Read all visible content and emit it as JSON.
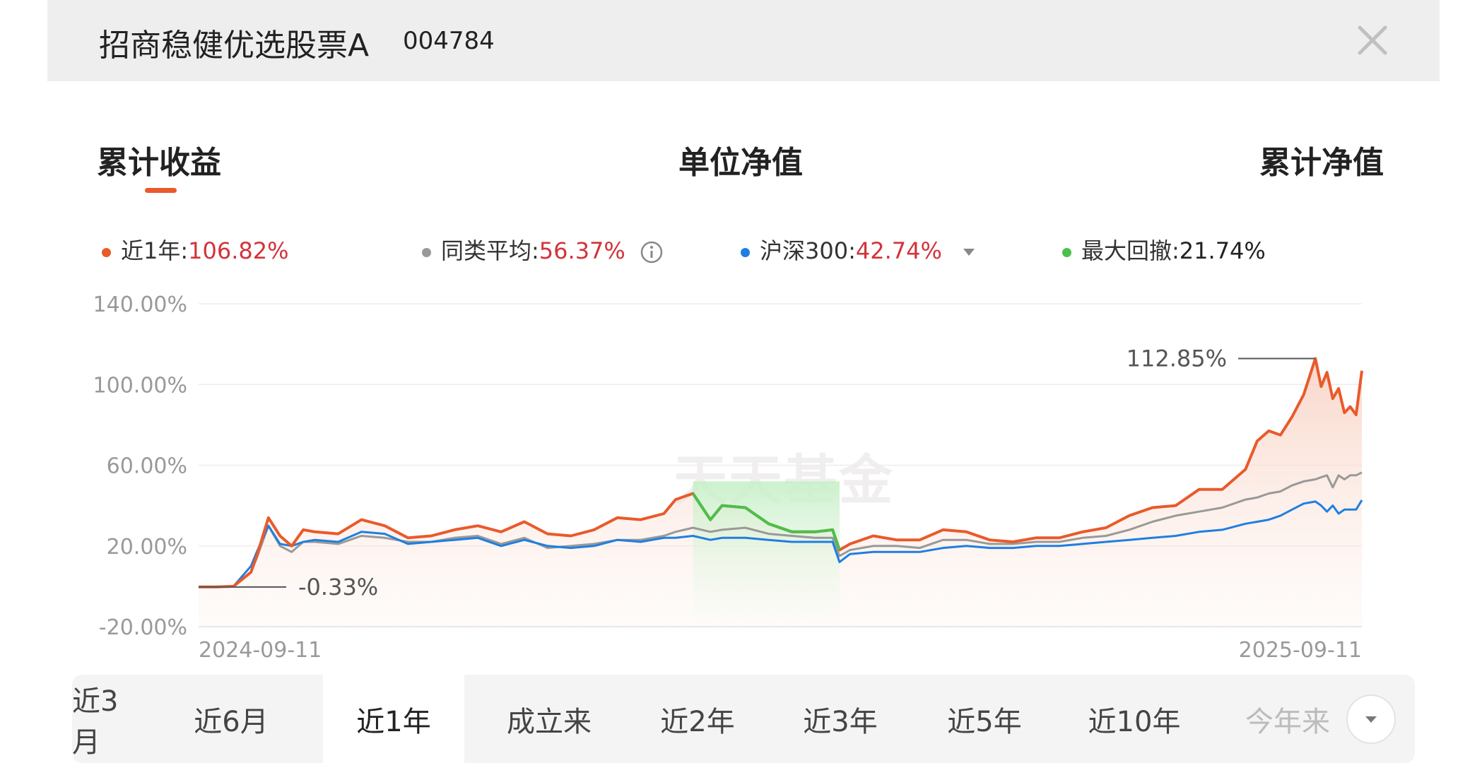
{
  "header": {
    "fund_name": "招商稳健优选股票A",
    "fund_code": "004784",
    "close_icon": "close-icon"
  },
  "mode_tabs": [
    {
      "label": "累计收益",
      "active": true
    },
    {
      "label": "单位净值",
      "active": false
    },
    {
      "label": "累计净值",
      "active": false
    }
  ],
  "legend": {
    "fund": {
      "label": "近1年:",
      "value": "106.82%",
      "color": "#e95a2b"
    },
    "peer": {
      "label": "同类平均:",
      "value": "56.37%",
      "color": "#999999"
    },
    "benchmark": {
      "label": "沪深300:",
      "value": "42.74%",
      "color": "#1e7fe0"
    },
    "drawdown": {
      "label": "最大回撤:",
      "value": "21.74%",
      "color": "#4cbf4c"
    }
  },
  "watermark": "天天基金",
  "chart_data": {
    "type": "line",
    "title": "",
    "xlabel": "",
    "ylabel": "",
    "x_start": "2024-09-11",
    "x_end": "2025-09-11",
    "x_tick_labels": [
      "2024-09-11",
      "2025-09-11"
    ],
    "y_tick_labels": [
      "140.00%",
      "100.00%",
      "60.00%",
      "20.00%",
      "-20.00%"
    ],
    "ylim": [
      -20,
      140
    ],
    "grid": true,
    "annotations": [
      {
        "text": "112.85%",
        "x_frac": 0.96,
        "y": 112.85
      },
      {
        "text": "-0.33%",
        "x_frac": 0.02,
        "y": -0.33
      }
    ],
    "drawdown_window": {
      "start_frac": 0.425,
      "end_frac": 0.551
    },
    "x_frac": [
      0,
      0.015,
      0.03,
      0.045,
      0.05,
      0.06,
      0.07,
      0.08,
      0.09,
      0.1,
      0.12,
      0.14,
      0.16,
      0.18,
      0.2,
      0.22,
      0.24,
      0.26,
      0.28,
      0.3,
      0.32,
      0.34,
      0.36,
      0.38,
      0.4,
      0.41,
      0.425,
      0.44,
      0.45,
      0.47,
      0.49,
      0.51,
      0.53,
      0.545,
      0.551,
      0.56,
      0.58,
      0.6,
      0.62,
      0.64,
      0.66,
      0.68,
      0.7,
      0.72,
      0.74,
      0.76,
      0.78,
      0.8,
      0.82,
      0.84,
      0.86,
      0.88,
      0.9,
      0.91,
      0.92,
      0.93,
      0.94,
      0.95,
      0.96,
      0.965,
      0.97,
      0.975,
      0.98,
      0.985,
      0.99,
      0.995,
      1.0
    ],
    "series": [
      {
        "name": "近1年",
        "color": "#e95a2b",
        "values": [
          -0.3,
          -0.3,
          0,
          7,
          15,
          34,
          25,
          20,
          28,
          27,
          26,
          33,
          30,
          24,
          25,
          28,
          30,
          27,
          32,
          26,
          25,
          28,
          34,
          33,
          36,
          43,
          46,
          33,
          40,
          39,
          31,
          27,
          27,
          28,
          18,
          21,
          25,
          23,
          23,
          28,
          27,
          23,
          22,
          24,
          24,
          27,
          29,
          35,
          39,
          40,
          48,
          48,
          58,
          72,
          77,
          75,
          84,
          95,
          112.85,
          99,
          106,
          93,
          98,
          86,
          89,
          85,
          106.8
        ]
      },
      {
        "name": "同类平均",
        "color": "#999999",
        "values": [
          -0.3,
          -0.3,
          0,
          7,
          14,
          30,
          20,
          17,
          22,
          22,
          21,
          25,
          24,
          22,
          22,
          24,
          25,
          21,
          24,
          19,
          20,
          21,
          23,
          23,
          25,
          27,
          29,
          27,
          28,
          29,
          26,
          25,
          24,
          24,
          15,
          18,
          20,
          20,
          19,
          23,
          23,
          21,
          21,
          22,
          22,
          24,
          25,
          28,
          32,
          35,
          37,
          39,
          43,
          44,
          46,
          47,
          50,
          52,
          53,
          54,
          55,
          49,
          55,
          53,
          55,
          55,
          56.4
        ]
      },
      {
        "name": "沪深300",
        "color": "#1e7fe0",
        "values": [
          -0.3,
          -0.3,
          0,
          10,
          17,
          30,
          21,
          20,
          22,
          23,
          22,
          27,
          26,
          21,
          22,
          23,
          24,
          20,
          23,
          20,
          19,
          20,
          23,
          22,
          24,
          24,
          25,
          23,
          24,
          24,
          23,
          22,
          22,
          22,
          12,
          16,
          17,
          17,
          17,
          19,
          20,
          19,
          19,
          20,
          20,
          21,
          22,
          23,
          24,
          25,
          27,
          28,
          31,
          32,
          33,
          35,
          38,
          41,
          42,
          40,
          37,
          40,
          36,
          38,
          38,
          38,
          42.7
        ]
      },
      {
        "name": "最大回撤",
        "color": "#4cbf4c",
        "segment_start_frac": 0.425,
        "segment_end_frac": 0.551
      }
    ]
  },
  "period_tabs": [
    {
      "label": "近3月",
      "active": false
    },
    {
      "label": "近6月",
      "active": false
    },
    {
      "label": "近1年",
      "active": true
    },
    {
      "label": "成立来",
      "active": false
    },
    {
      "label": "近2年",
      "active": false
    },
    {
      "label": "近3年",
      "active": false
    },
    {
      "label": "近5年",
      "active": false
    },
    {
      "label": "近10年",
      "active": false
    },
    {
      "label": "今年来",
      "active": false
    }
  ],
  "more_icon": "chevron-down-icon"
}
